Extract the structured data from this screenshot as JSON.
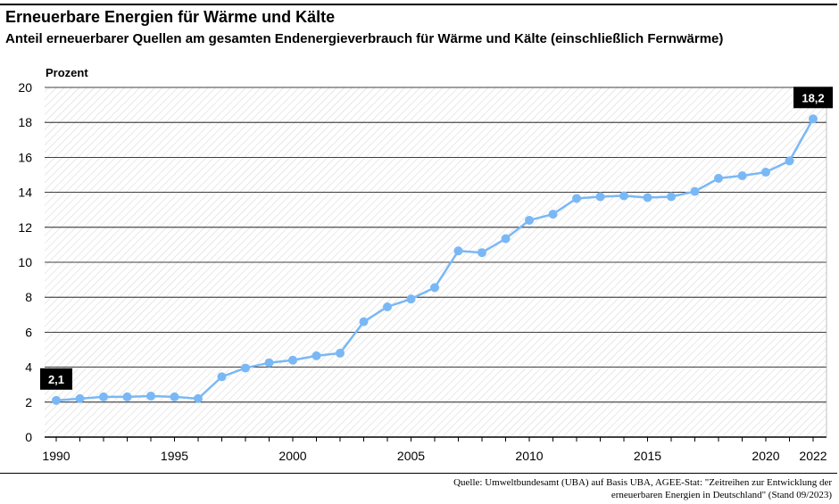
{
  "header": {
    "title": "Erneuerbare Energien für Wärme und Kälte",
    "subtitle": "Anteil erneuerbarer Quellen am gesamten Endenergieverbrauch für Wärme und Kälte (einschließlich Fernwärme)"
  },
  "source": {
    "line1": "Quelle: Umweltbundesamt (UBA) auf Basis UBA, AGEE-Stat: \"Zeitreihen zur Entwicklung der",
    "line2": "erneuerbaren Energien in Deutschland\" (Stand 09/2023)"
  },
  "colors": {
    "line": "#7ab8f5",
    "grid": "#000000",
    "label_bg": "#000000",
    "label_text": "#ffffff",
    "hatch": "#d9d9d9"
  },
  "chart_data": {
    "type": "line",
    "title": "Erneuerbare Energien für Wärme und Kälte",
    "subtitle": "Anteil erneuerbarer Quellen am gesamten Endenergieverbrauch für Wärme und Kälte (einschließlich Fernwärme)",
    "ylabel": "Prozent",
    "xlabel": "",
    "ylim": [
      0,
      20
    ],
    "xlim": [
      1990,
      2022
    ],
    "yticks": [
      "0",
      "2",
      "4",
      "6",
      "8",
      "10",
      "12",
      "14",
      "16",
      "18",
      "20"
    ],
    "xticks": [
      "1990",
      "1995",
      "2000",
      "2005",
      "2010",
      "2015",
      "2020",
      "2022"
    ],
    "grid": true,
    "x": [
      1990,
      1991,
      1992,
      1993,
      1994,
      1995,
      1996,
      1997,
      1998,
      1999,
      2000,
      2001,
      2002,
      2003,
      2004,
      2005,
      2006,
      2007,
      2008,
      2009,
      2010,
      2011,
      2012,
      2013,
      2014,
      2015,
      2016,
      2017,
      2018,
      2019,
      2020,
      2021,
      2022
    ],
    "series": [
      {
        "values": [
          2.1,
          2.2,
          2.3,
          2.3,
          2.35,
          2.3,
          2.2,
          3.45,
          3.95,
          4.25,
          4.4,
          4.65,
          4.8,
          6.6,
          7.45,
          7.9,
          8.55,
          10.65,
          10.55,
          11.35,
          12.4,
          12.75,
          13.65,
          13.75,
          13.8,
          13.7,
          13.75,
          14.05,
          14.8,
          14.95,
          15.15,
          15.8,
          18.2
        ]
      }
    ],
    "annotations": [
      {
        "x": 1990,
        "label": "2,1"
      },
      {
        "x": 2022,
        "label": "18,2"
      }
    ]
  }
}
